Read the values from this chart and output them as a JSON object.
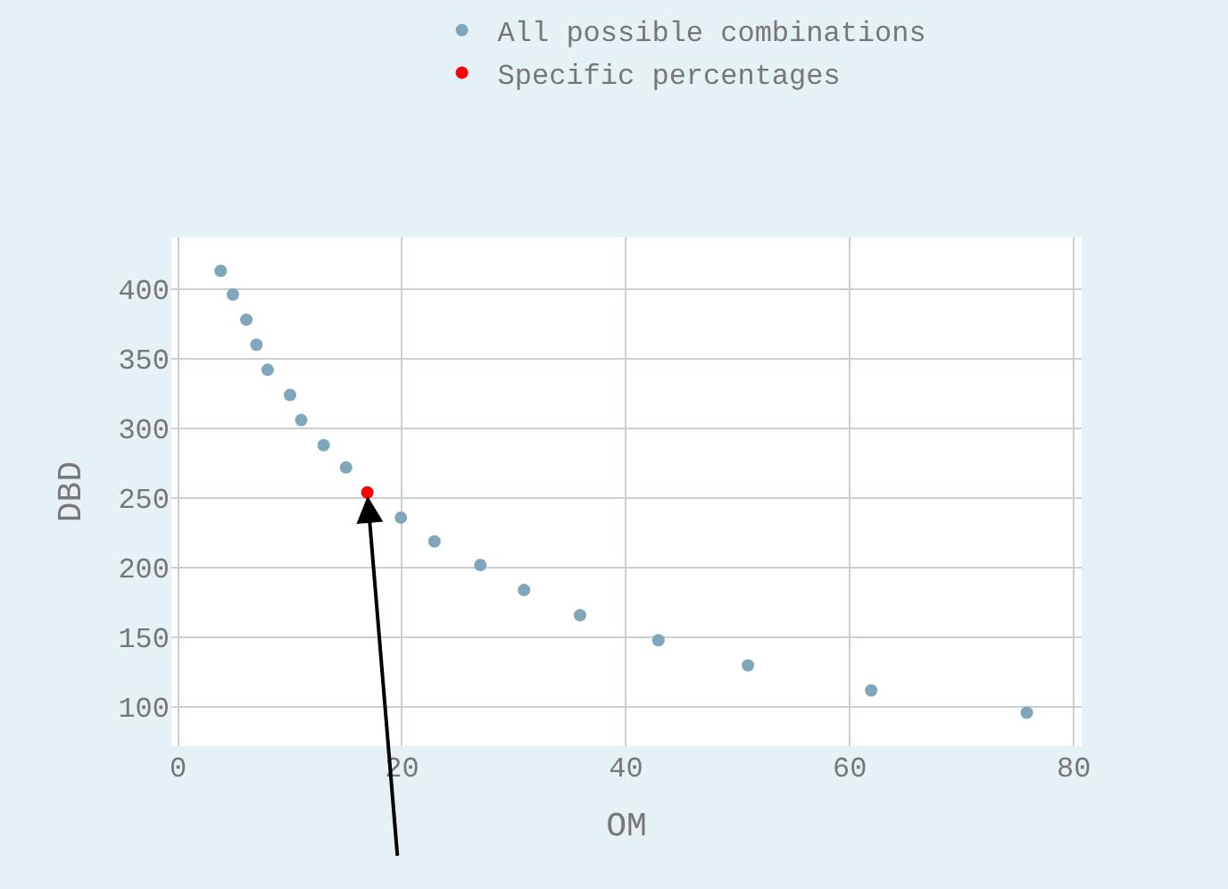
{
  "chart_data": {
    "type": "scatter",
    "xlabel": "OM",
    "ylabel": "DBD",
    "xlim": [
      -0.6,
      80.7
    ],
    "ylim": [
      72,
      437
    ],
    "xticks": [
      0,
      20,
      40,
      60,
      80
    ],
    "yticks": [
      100,
      150,
      200,
      250,
      300,
      350,
      400
    ],
    "grid": true,
    "legend": "top",
    "marker": "circle",
    "series": [
      {
        "name": "All possible combinations",
        "color": "#7fa6ba",
        "x": [
          3.8,
          4.9,
          6.1,
          7.0,
          8.0,
          10.0,
          11.0,
          13.0,
          15.0,
          19.9,
          22.9,
          27.0,
          30.9,
          35.9,
          42.9,
          50.9,
          61.9,
          75.8
        ],
        "values": [
          413,
          396,
          378,
          360,
          342,
          324,
          306,
          288,
          272,
          236,
          219,
          202,
          184,
          166,
          148,
          130,
          112,
          96
        ]
      },
      {
        "name": "Specific percentages",
        "color": "#ff0000",
        "x": [
          16.9
        ],
        "values": [
          254
        ]
      }
    ]
  }
}
